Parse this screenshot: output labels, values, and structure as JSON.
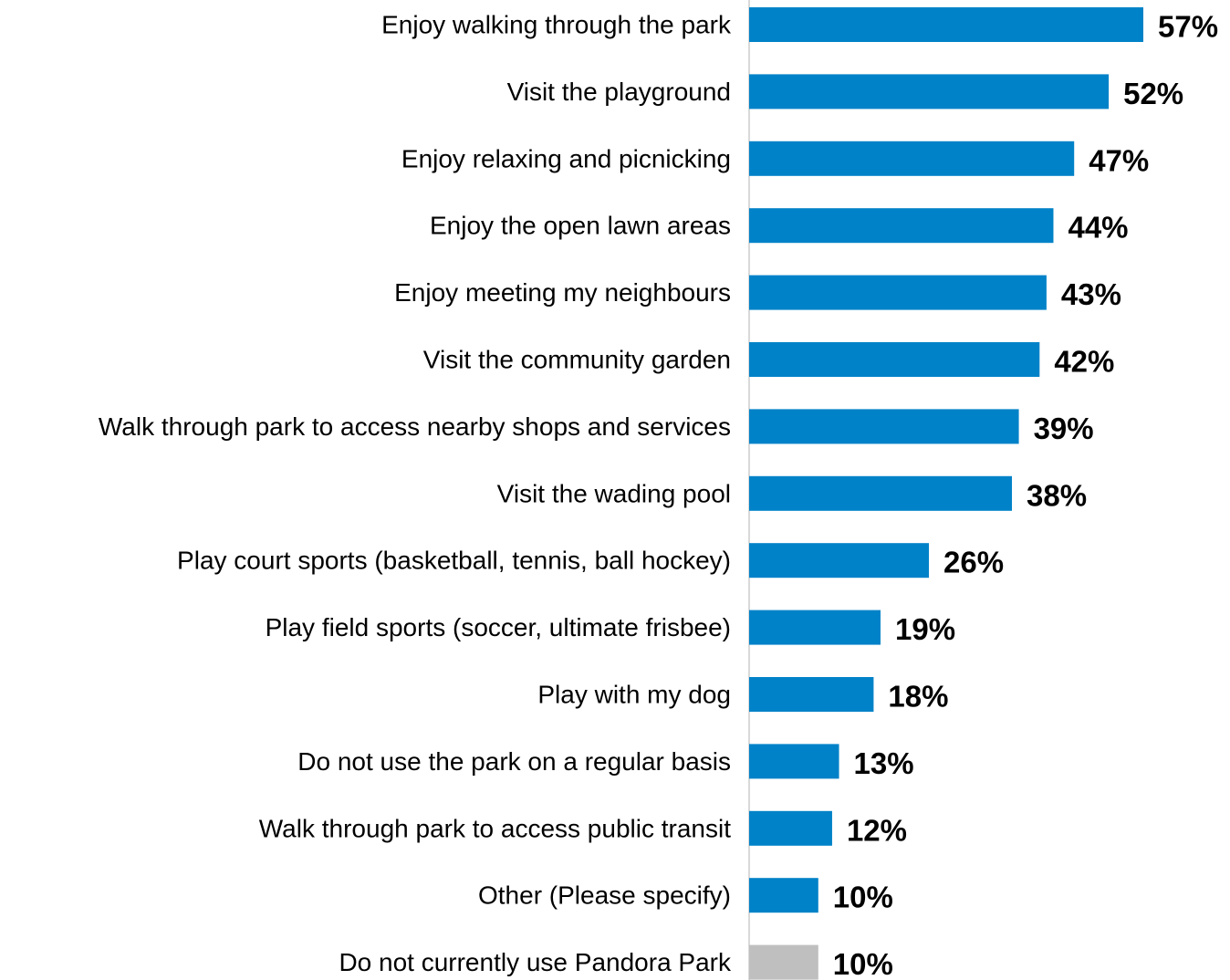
{
  "chart_data": {
    "type": "bar",
    "orientation": "horizontal",
    "categories": [
      "Enjoy walking through the park",
      "Visit the playground",
      "Enjoy relaxing and picnicking",
      "Enjoy the open lawn areas",
      "Enjoy meeting my neighbours",
      "Visit the community garden",
      "Walk through park to access nearby shops and services",
      "Visit the wading pool",
      "Play court sports (basketball, tennis, ball hockey)",
      "Play field sports (soccer, ultimate frisbee)",
      "Play with my dog",
      "Do not use the park on a regular basis",
      "Walk through park to access public transit",
      "Other (Please specify)",
      "Do not currently use Pandora Park"
    ],
    "values": [
      57,
      52,
      47,
      44,
      43,
      42,
      39,
      38,
      26,
      19,
      18,
      13,
      12,
      10,
      10
    ],
    "value_labels": [
      "57%",
      "52%",
      "47%",
      "44%",
      "43%",
      "42%",
      "39%",
      "38%",
      "26%",
      "19%",
      "18%",
      "13%",
      "12%",
      "10%",
      "10%"
    ],
    "bar_colors": [
      "#0082C8",
      "#0082C8",
      "#0082C8",
      "#0082C8",
      "#0082C8",
      "#0082C8",
      "#0082C8",
      "#0082C8",
      "#0082C8",
      "#0082C8",
      "#0082C8",
      "#0082C8",
      "#0082C8",
      "#0082C8",
      "#BFBFBF"
    ],
    "axis_color": "#D9D9D9",
    "xlim": [
      0,
      57
    ],
    "grid": false,
    "legend": "none"
  }
}
